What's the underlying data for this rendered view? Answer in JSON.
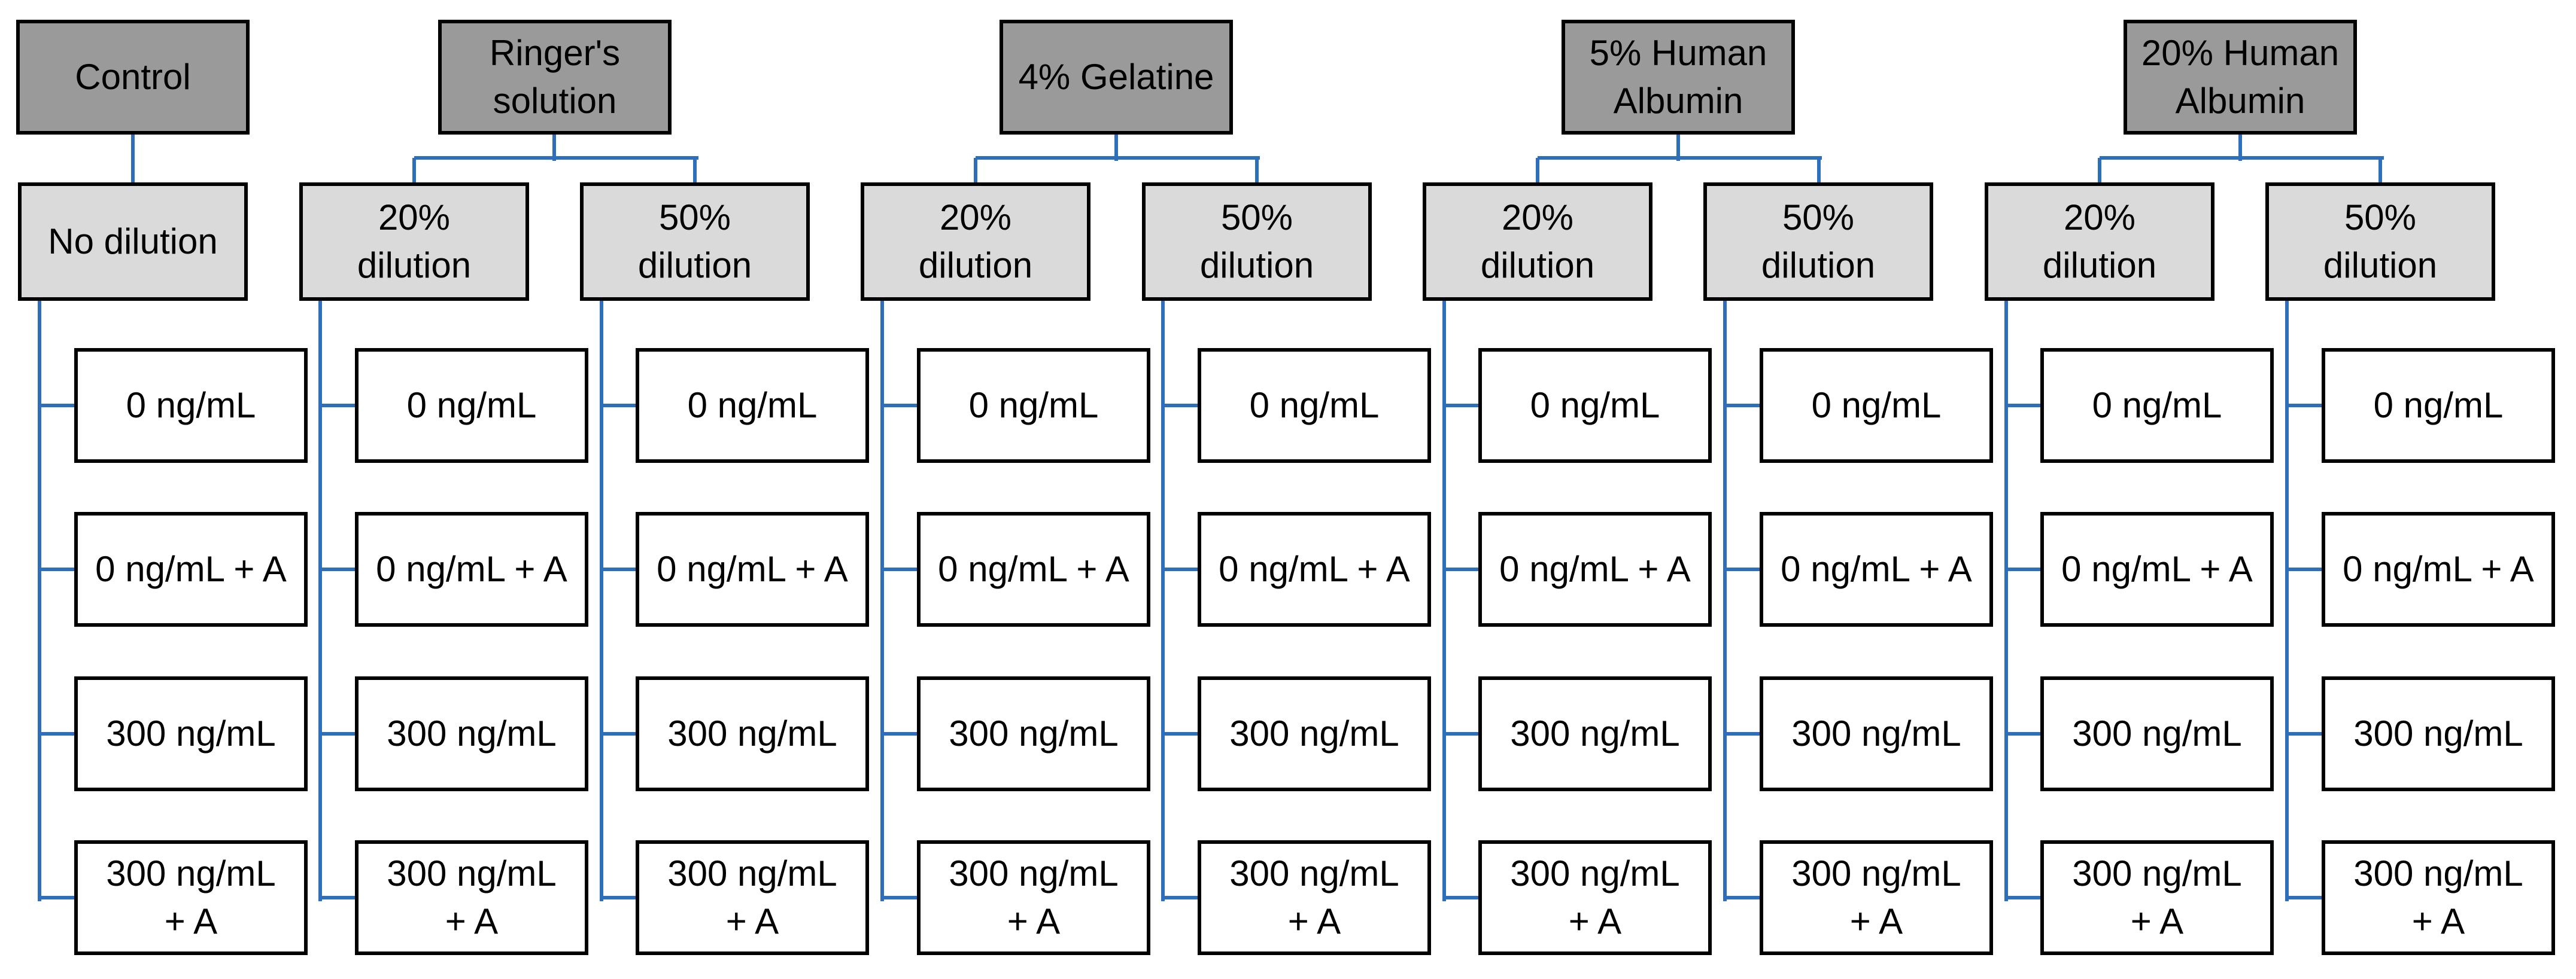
{
  "colors": {
    "connector": "#2e6fbb",
    "group_fill": "#9a9a9a",
    "dilution_fill": "#dadada",
    "leaf_fill": "#ffffff",
    "border": "#000000"
  },
  "groups": [
    {
      "label": [
        "Control"
      ],
      "dilutions": [
        {
          "label": [
            "No dilution"
          ],
          "leaves": [
            [
              "0 ng/mL"
            ],
            [
              "0 ng/mL + A"
            ],
            [
              "300 ng/mL"
            ],
            [
              "300 ng/mL",
              "+ A"
            ]
          ]
        }
      ]
    },
    {
      "label": [
        "Ringer's",
        "solution"
      ],
      "dilutions": [
        {
          "label": [
            "20%",
            "dilution"
          ],
          "leaves": [
            [
              "0 ng/mL"
            ],
            [
              "0 ng/mL + A"
            ],
            [
              "300 ng/mL"
            ],
            [
              "300 ng/mL",
              "+ A"
            ]
          ]
        },
        {
          "label": [
            "50%",
            "dilution"
          ],
          "leaves": [
            [
              "0 ng/mL"
            ],
            [
              "0 ng/mL + A"
            ],
            [
              "300 ng/mL"
            ],
            [
              "300 ng/mL",
              "+ A"
            ]
          ]
        }
      ]
    },
    {
      "label": [
        "4% Gelatine"
      ],
      "dilutions": [
        {
          "label": [
            "20%",
            "dilution"
          ],
          "leaves": [
            [
              "0 ng/mL"
            ],
            [
              "0 ng/mL + A"
            ],
            [
              "300 ng/mL"
            ],
            [
              "300 ng/mL",
              "+ A"
            ]
          ]
        },
        {
          "label": [
            "50%",
            "dilution"
          ],
          "leaves": [
            [
              "0 ng/mL"
            ],
            [
              "0 ng/mL + A"
            ],
            [
              "300 ng/mL"
            ],
            [
              "300 ng/mL",
              "+ A"
            ]
          ]
        }
      ]
    },
    {
      "label": [
        "5% Human",
        "Albumin"
      ],
      "dilutions": [
        {
          "label": [
            "20%",
            "dilution"
          ],
          "leaves": [
            [
              "0 ng/mL"
            ],
            [
              "0 ng/mL + A"
            ],
            [
              "300 ng/mL"
            ],
            [
              "300 ng/mL",
              "+ A"
            ]
          ]
        },
        {
          "label": [
            "50%",
            "dilution"
          ],
          "leaves": [
            [
              "0 ng/mL"
            ],
            [
              "0 ng/mL + A"
            ],
            [
              "300 ng/mL"
            ],
            [
              "300 ng/mL",
              "+ A"
            ]
          ]
        }
      ]
    },
    {
      "label": [
        "20% Human",
        "Albumin"
      ],
      "dilutions": [
        {
          "label": [
            "20%",
            "dilution"
          ],
          "leaves": [
            [
              "0 ng/mL"
            ],
            [
              "0 ng/mL + A"
            ],
            [
              "300 ng/mL"
            ],
            [
              "300 ng/mL",
              "+ A"
            ]
          ]
        },
        {
          "label": [
            "50%",
            "dilution"
          ],
          "leaves": [
            [
              "0 ng/mL"
            ],
            [
              "0 ng/mL + A"
            ],
            [
              "300 ng/mL"
            ],
            [
              "300 ng/mL",
              "+ A"
            ]
          ]
        }
      ]
    }
  ]
}
